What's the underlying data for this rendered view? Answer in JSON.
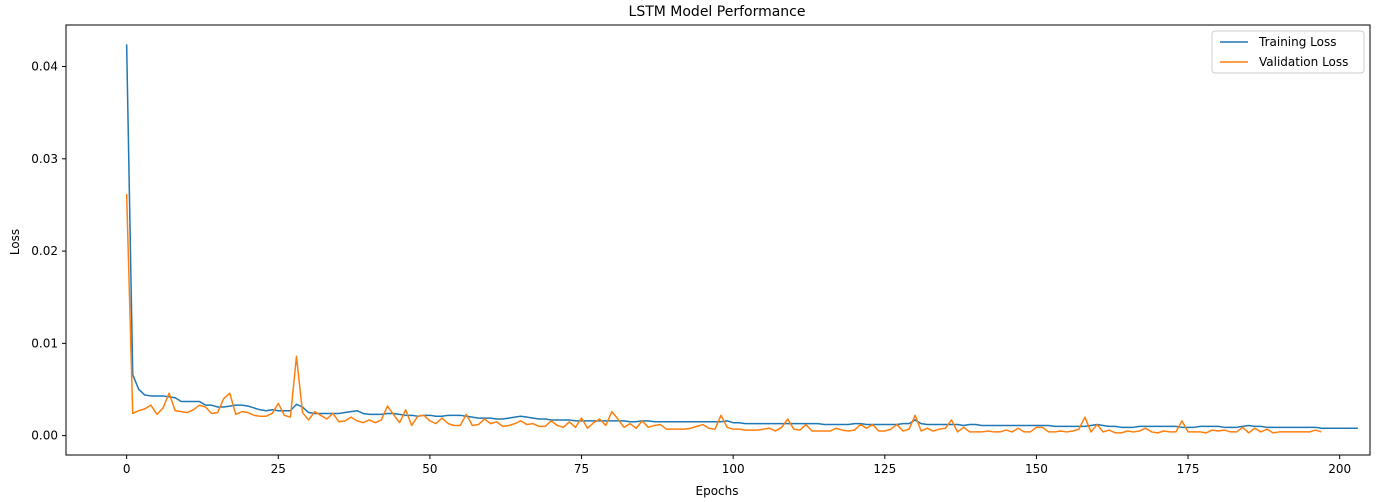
{
  "chart_data": {
    "type": "line",
    "title": "LSTM Model Performance",
    "xlabel": "Epochs",
    "ylabel": "Loss",
    "xlim": [
      -10,
      205
    ],
    "ylim": [
      -0.0021,
      0.0445
    ],
    "xticks": [
      0,
      25,
      50,
      75,
      100,
      125,
      150,
      175,
      200
    ],
    "yticks": [
      0.0,
      0.01,
      0.02,
      0.03,
      0.04
    ],
    "ytick_labels": [
      "0.00",
      "0.01",
      "0.02",
      "0.03",
      "0.04"
    ],
    "grid": false,
    "legend_position": "top-right",
    "series": [
      {
        "name": "Training Loss",
        "color": "#1f77b4",
        "values": [
          0.0424,
          0.0066,
          0.005,
          0.0044,
          0.0043,
          0.0043,
          0.0043,
          0.0042,
          0.0041,
          0.0037,
          0.0037,
          0.0037,
          0.0037,
          0.0033,
          0.0033,
          0.0031,
          0.0031,
          0.0032,
          0.0033,
          0.0033,
          0.0032,
          0.003,
          0.0028,
          0.0027,
          0.0028,
          0.0027,
          0.0027,
          0.0027,
          0.0034,
          0.0031,
          0.0025,
          0.0024,
          0.0024,
          0.0024,
          0.0024,
          0.0024,
          0.0025,
          0.0026,
          0.0027,
          0.0024,
          0.0023,
          0.0023,
          0.0023,
          0.0024,
          0.0024,
          0.0023,
          0.0022,
          0.0022,
          0.0021,
          0.0022,
          0.0022,
          0.0021,
          0.0021,
          0.0022,
          0.0022,
          0.0022,
          0.0021,
          0.002,
          0.0019,
          0.0019,
          0.0019,
          0.0018,
          0.0018,
          0.0019,
          0.002,
          0.0021,
          0.002,
          0.0019,
          0.0018,
          0.0018,
          0.0017,
          0.0017,
          0.0017,
          0.0017,
          0.0016,
          0.0016,
          0.0016,
          0.0016,
          0.0016,
          0.0016,
          0.0016,
          0.0016,
          0.0016,
          0.0015,
          0.0015,
          0.0016,
          0.0016,
          0.0015,
          0.0015,
          0.0015,
          0.0015,
          0.0015,
          0.0015,
          0.0015,
          0.0015,
          0.0015,
          0.0015,
          0.0015,
          0.0015,
          0.0016,
          0.0014,
          0.0014,
          0.0013,
          0.0013,
          0.0013,
          0.0013,
          0.0013,
          0.0013,
          0.0013,
          0.0013,
          0.0013,
          0.0013,
          0.0013,
          0.0013,
          0.0013,
          0.0012,
          0.0012,
          0.0012,
          0.0012,
          0.0012,
          0.0013,
          0.0013,
          0.0012,
          0.0012,
          0.0012,
          0.0012,
          0.0012,
          0.0012,
          0.0013,
          0.0013,
          0.0017,
          0.0013,
          0.0012,
          0.0012,
          0.0012,
          0.0012,
          0.0012,
          0.0012,
          0.0011,
          0.0012,
          0.0012,
          0.0011,
          0.0011,
          0.0011,
          0.0011,
          0.0011,
          0.0011,
          0.0011,
          0.0011,
          0.0011,
          0.0011,
          0.0011,
          0.0011,
          0.001,
          0.001,
          0.001,
          0.001,
          0.001,
          0.001,
          0.0011,
          0.0012,
          0.0011,
          0.001,
          0.001,
          0.0009,
          0.0009,
          0.0009,
          0.001,
          0.001,
          0.001,
          0.001,
          0.001,
          0.001,
          0.001,
          0.0009,
          0.0009,
          0.0009,
          0.001,
          0.001,
          0.001,
          0.001,
          0.0009,
          0.0009,
          0.0009,
          0.001,
          0.0011,
          0.001,
          0.001,
          0.0009,
          0.0009,
          0.0009,
          0.0009,
          0.0009,
          0.0009,
          0.0009,
          0.0009,
          0.0009,
          0.0008,
          0.0008,
          0.0008,
          0.0008,
          0.0008,
          0.0008,
          0.0008
        ]
      },
      {
        "name": "Validation Loss",
        "color": "#ff7f0e",
        "values": [
          0.0262,
          0.0024,
          0.0027,
          0.0029,
          0.0033,
          0.0023,
          0.003,
          0.0046,
          0.0027,
          0.0026,
          0.0025,
          0.0028,
          0.0033,
          0.0031,
          0.0024,
          0.0025,
          0.004,
          0.0046,
          0.0023,
          0.0026,
          0.0025,
          0.0022,
          0.0021,
          0.0021,
          0.0024,
          0.0035,
          0.0022,
          0.002,
          0.0086,
          0.0025,
          0.0017,
          0.0026,
          0.0022,
          0.0018,
          0.0024,
          0.0015,
          0.0016,
          0.002,
          0.0016,
          0.0014,
          0.0017,
          0.0014,
          0.0017,
          0.0032,
          0.0023,
          0.0014,
          0.0028,
          0.0011,
          0.0021,
          0.0022,
          0.0016,
          0.0013,
          0.0019,
          0.0013,
          0.0011,
          0.0011,
          0.0023,
          0.0011,
          0.0012,
          0.0018,
          0.0013,
          0.0015,
          0.001,
          0.0011,
          0.0013,
          0.0016,
          0.0012,
          0.0013,
          0.001,
          0.001,
          0.0016,
          0.0011,
          0.0009,
          0.0015,
          0.0009,
          0.0019,
          0.0008,
          0.0014,
          0.0018,
          0.0011,
          0.0026,
          0.0018,
          0.0009,
          0.0013,
          0.0008,
          0.0016,
          0.0009,
          0.0011,
          0.0012,
          0.0007,
          0.0007,
          0.0007,
          0.0007,
          0.0008,
          0.001,
          0.0012,
          0.0008,
          0.0007,
          0.0022,
          0.0009,
          0.0007,
          0.0007,
          0.0006,
          0.0006,
          0.0006,
          0.0007,
          0.0008,
          0.0005,
          0.0009,
          0.0018,
          0.0007,
          0.0006,
          0.0012,
          0.0005,
          0.0005,
          0.0005,
          0.0005,
          0.0008,
          0.0006,
          0.0005,
          0.0006,
          0.0012,
          0.0008,
          0.0012,
          0.0005,
          0.0005,
          0.0007,
          0.0012,
          0.0005,
          0.0007,
          0.0022,
          0.0005,
          0.0008,
          0.0005,
          0.0007,
          0.0008,
          0.0017,
          0.0004,
          0.0009,
          0.0004,
          0.0004,
          0.0004,
          0.0005,
          0.0004,
          0.0004,
          0.0006,
          0.0004,
          0.0008,
          0.0004,
          0.0004,
          0.0009,
          0.0009,
          0.0004,
          0.0004,
          0.0005,
          0.0004,
          0.0005,
          0.0007,
          0.002,
          0.0004,
          0.0012,
          0.0004,
          0.0006,
          0.0003,
          0.0003,
          0.0005,
          0.0004,
          0.0005,
          0.0008,
          0.0004,
          0.0003,
          0.0005,
          0.0004,
          0.0004,
          0.0016,
          0.0004,
          0.0004,
          0.0004,
          0.0003,
          0.0006,
          0.0005,
          0.0006,
          0.0004,
          0.0004,
          0.0009,
          0.0003,
          0.0008,
          0.0004,
          0.0007,
          0.0003,
          0.0004,
          0.0004,
          0.0004,
          0.0004,
          0.0004,
          0.0004,
          0.0006,
          0.0004
        ]
      }
    ]
  }
}
